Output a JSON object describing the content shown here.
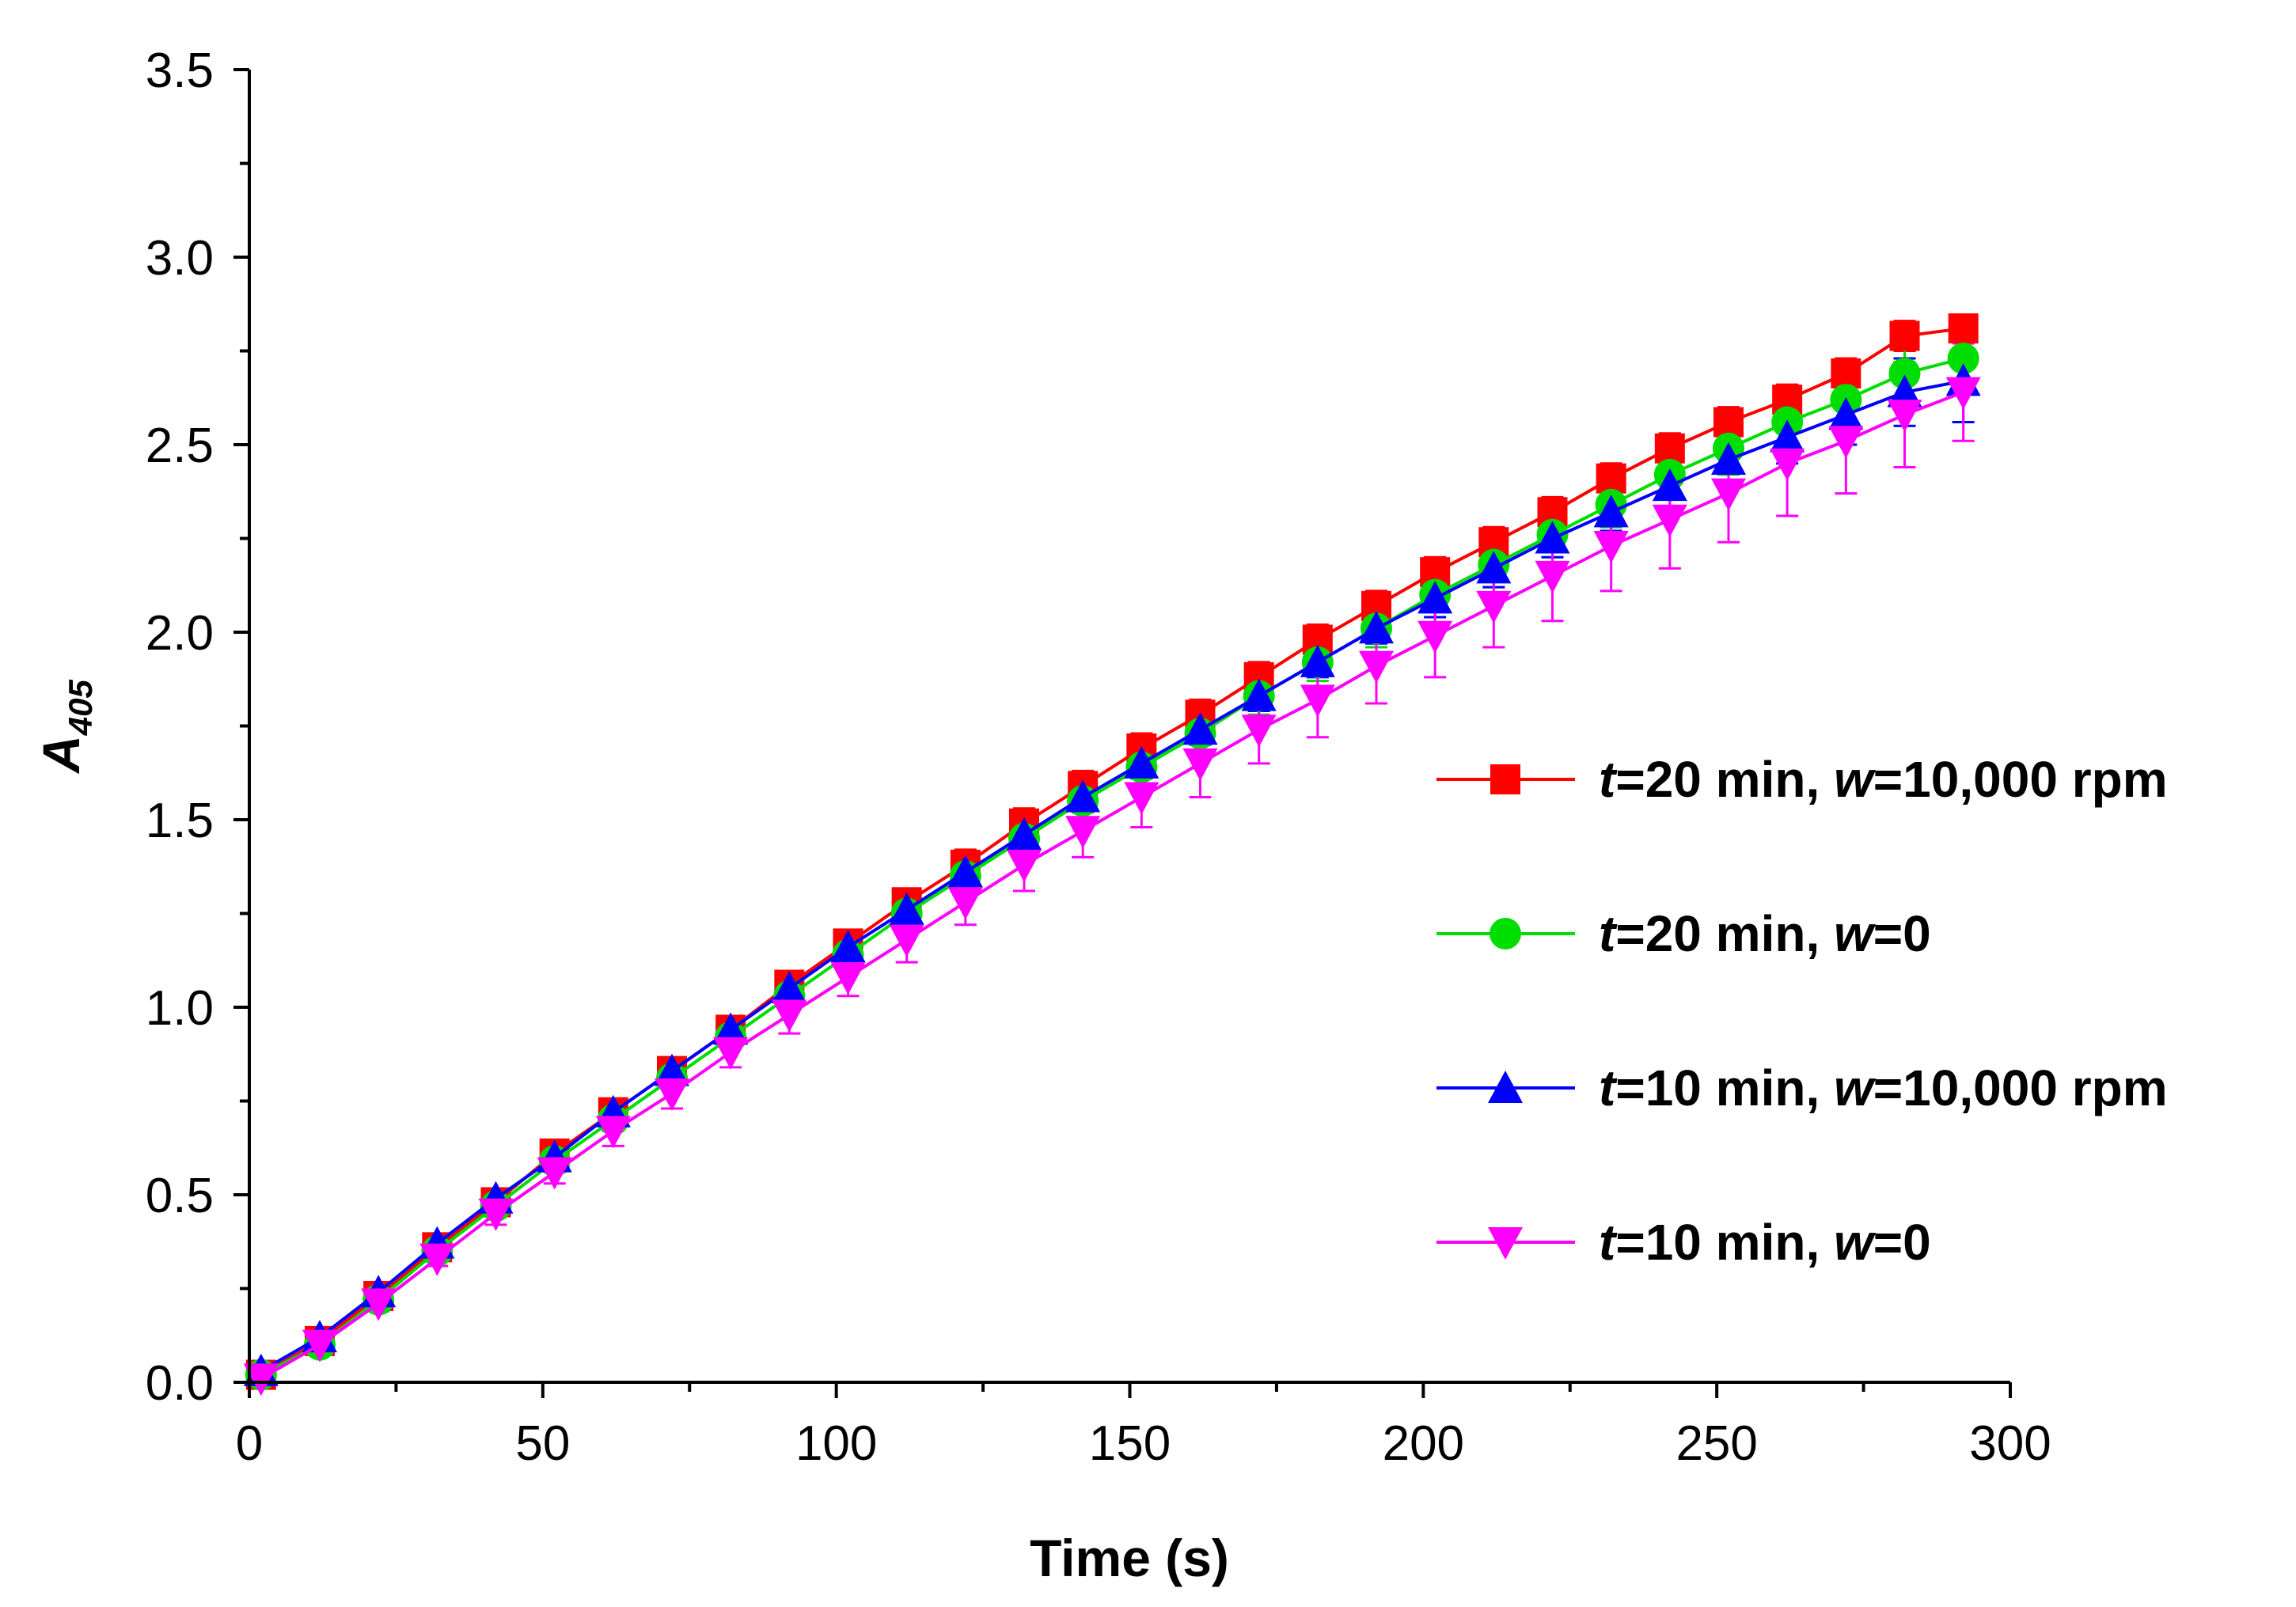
{
  "chart_data": {
    "type": "line",
    "xlabel": "Time (s)",
    "ylabel_main": "A",
    "ylabel_sub": "405",
    "xlim": [
      0,
      300
    ],
    "ylim": [
      0,
      3.5
    ],
    "xticks": [
      0,
      50,
      100,
      150,
      200,
      250,
      300
    ],
    "yticks": [
      0.0,
      0.5,
      1.0,
      1.5,
      2.0,
      2.5,
      3.0,
      3.5
    ],
    "xtick_labels": [
      "0",
      "50",
      "100",
      "150",
      "200",
      "250",
      "300"
    ],
    "ytick_labels": [
      "0.0",
      "0.5",
      "1.0",
      "1.5",
      "2.0",
      "2.5",
      "3.0",
      "3.5"
    ],
    "grid": false,
    "legend_position": "right",
    "x": [
      2,
      12,
      22,
      32,
      42,
      52,
      62,
      72,
      82,
      92,
      102,
      112,
      122,
      132,
      142,
      152,
      162,
      172,
      182,
      192,
      202,
      212,
      222,
      232,
      242,
      252,
      262,
      272,
      282,
      292
    ],
    "series": [
      {
        "name": "t=20 min, w=10,000 rpm",
        "legend_parts": [
          {
            "text": "t",
            "italic": true
          },
          {
            "text": "=20 min, ",
            "italic": false
          },
          {
            "text": "w",
            "italic": true
          },
          {
            "text": "=10,000 rpm",
            "italic": false
          }
        ],
        "color": "#ff0000",
        "marker": "square",
        "values": [
          0.02,
          0.11,
          0.23,
          0.36,
          0.48,
          0.61,
          0.72,
          0.83,
          0.94,
          1.06,
          1.17,
          1.28,
          1.38,
          1.49,
          1.59,
          1.69,
          1.78,
          1.88,
          1.98,
          2.07,
          2.16,
          2.24,
          2.32,
          2.41,
          2.49,
          2.56,
          2.62,
          2.69,
          2.79,
          2.81
        ],
        "errors": [
          0.01,
          0.02,
          0.02,
          0.02,
          0.02,
          0.03,
          0.03,
          0.03,
          0.03,
          0.03,
          0.03,
          0.03,
          0.04,
          0.04,
          0.04,
          0.04,
          0.04,
          0.04,
          0.04,
          0.04,
          0.04,
          0.04,
          0.04,
          0.04,
          0.04,
          0.04,
          0.04,
          0.04,
          0.04,
          0.03
        ]
      },
      {
        "name": "t=20 min, w=0",
        "legend_parts": [
          {
            "text": "t",
            "italic": true
          },
          {
            "text": "=20 min, ",
            "italic": false
          },
          {
            "text": "w",
            "italic": true
          },
          {
            "text": "=0",
            "italic": false
          }
        ],
        "color": "#00dd00",
        "marker": "circle",
        "values": [
          0.02,
          0.1,
          0.22,
          0.35,
          0.47,
          0.59,
          0.7,
          0.81,
          0.92,
          1.03,
          1.14,
          1.25,
          1.35,
          1.45,
          1.55,
          1.64,
          1.73,
          1.83,
          1.92,
          2.01,
          2.1,
          2.18,
          2.26,
          2.34,
          2.42,
          2.49,
          2.56,
          2.62,
          2.69,
          2.73
        ],
        "errors": [
          0.01,
          0.02,
          0.02,
          0.02,
          0.02,
          0.03,
          0.03,
          0.03,
          0.03,
          0.04,
          0.04,
          0.04,
          0.04,
          0.05,
          0.05,
          0.05,
          0.05,
          0.05,
          0.05,
          0.05,
          0.06,
          0.06,
          0.06,
          0.06,
          0.06,
          0.07,
          0.07,
          0.08,
          0.08,
          0.08
        ]
      },
      {
        "name": "t=10 min, w=10,000 rpm",
        "legend_parts": [
          {
            "text": "t",
            "italic": true
          },
          {
            "text": "=10 min, ",
            "italic": false
          },
          {
            "text": "w",
            "italic": true
          },
          {
            "text": "=10,000 rpm",
            "italic": false
          }
        ],
        "color": "#0000ff",
        "marker": "triangle-up",
        "values": [
          0.03,
          0.12,
          0.24,
          0.37,
          0.49,
          0.6,
          0.72,
          0.83,
          0.94,
          1.05,
          1.16,
          1.26,
          1.36,
          1.46,
          1.56,
          1.65,
          1.74,
          1.83,
          1.92,
          2.01,
          2.09,
          2.17,
          2.25,
          2.32,
          2.39,
          2.46,
          2.52,
          2.58,
          2.64,
          2.67
        ],
        "errors": [
          0.01,
          0.02,
          0.02,
          0.02,
          0.02,
          0.03,
          0.03,
          0.03,
          0.03,
          0.03,
          0.03,
          0.03,
          0.04,
          0.04,
          0.04,
          0.04,
          0.04,
          0.04,
          0.04,
          0.04,
          0.05,
          0.05,
          0.05,
          0.05,
          0.06,
          0.06,
          0.07,
          0.08,
          0.09,
          0.11
        ]
      },
      {
        "name": "t=10 min, w=0",
        "legend_parts": [
          {
            "text": "t",
            "italic": true
          },
          {
            "text": "=10 min, ",
            "italic": false
          },
          {
            "text": "w",
            "italic": true
          },
          {
            "text": "=0",
            "italic": false
          }
        ],
        "color": "#ff00ff",
        "marker": "triangle-down",
        "values": [
          0.01,
          0.1,
          0.21,
          0.33,
          0.45,
          0.56,
          0.67,
          0.77,
          0.88,
          0.98,
          1.08,
          1.18,
          1.28,
          1.38,
          1.47,
          1.56,
          1.65,
          1.74,
          1.82,
          1.91,
          1.99,
          2.07,
          2.15,
          2.23,
          2.3,
          2.37,
          2.45,
          2.51,
          2.58,
          2.64
        ],
        "errors": [
          0.01,
          0.02,
          0.02,
          0.02,
          0.03,
          0.03,
          0.04,
          0.04,
          0.04,
          0.05,
          0.05,
          0.06,
          0.06,
          0.07,
          0.07,
          0.08,
          0.09,
          0.09,
          0.1,
          0.1,
          0.11,
          0.11,
          0.12,
          0.12,
          0.13,
          0.13,
          0.14,
          0.14,
          0.14,
          0.13
        ]
      }
    ]
  }
}
